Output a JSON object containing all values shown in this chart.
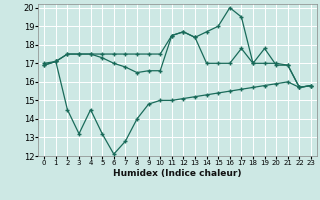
{
  "xlabel": "Humidex (Indice chaleur)",
  "xlim": [
    -0.5,
    23.5
  ],
  "ylim": [
    12,
    20.2
  ],
  "yticks": [
    12,
    13,
    14,
    15,
    16,
    17,
    18,
    19,
    20
  ],
  "xticks": [
    0,
    1,
    2,
    3,
    4,
    5,
    6,
    7,
    8,
    9,
    10,
    11,
    12,
    13,
    14,
    15,
    16,
    17,
    18,
    19,
    20,
    21,
    22,
    23
  ],
  "bg_color": "#cde8e4",
  "line_color": "#1a6b5a",
  "grid_color": "#ffffff",
  "series1_y": [
    17.0,
    17.1,
    17.5,
    17.5,
    17.5,
    17.5,
    17.5,
    17.5,
    17.5,
    17.5,
    17.5,
    18.5,
    18.7,
    18.4,
    17.0,
    17.0,
    17.0,
    17.8,
    17.0,
    17.0,
    17.0,
    16.9,
    15.7,
    15.8
  ],
  "series2_y": [
    16.9,
    17.1,
    17.5,
    17.5,
    17.5,
    17.3,
    17.0,
    16.8,
    16.5,
    16.6,
    16.6,
    18.5,
    18.7,
    18.4,
    18.7,
    19.0,
    20.0,
    19.5,
    17.0,
    17.8,
    16.9,
    16.9,
    15.7,
    15.8
  ],
  "series3_y": [
    16.9,
    17.1,
    14.5,
    13.2,
    14.5,
    13.2,
    12.1,
    12.8,
    14.0,
    14.8,
    15.0,
    15.0,
    15.1,
    15.2,
    15.3,
    15.4,
    15.5,
    15.6,
    15.7,
    15.8,
    15.9,
    16.0,
    15.7,
    15.8
  ]
}
